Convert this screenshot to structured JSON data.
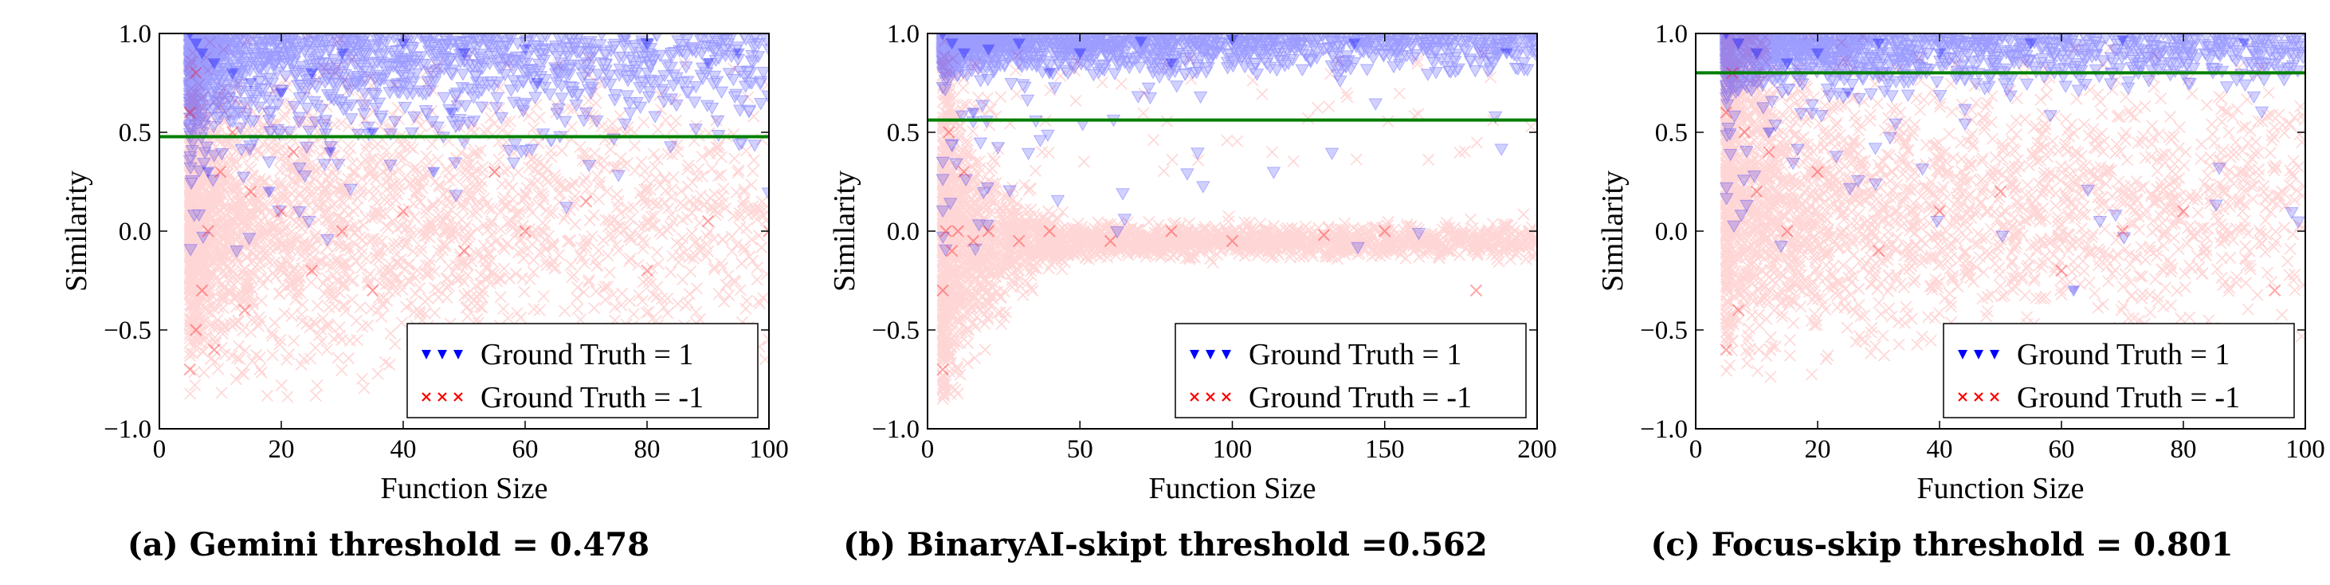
{
  "chart_data": [
    {
      "type": "scatter",
      "caption": "(a) Gemini threshold = 0.478",
      "xlabel": "Function Size",
      "ylabel": "Similarity",
      "xlim": [
        0,
        100
      ],
      "ylim": [
        -1.0,
        1.0
      ],
      "xticks": [
        0,
        20,
        40,
        60,
        80,
        100
      ],
      "yticks": [
        -1.0,
        -0.5,
        0.0,
        0.5,
        1.0
      ],
      "ytick_labels": [
        "−1.0",
        "−0.5",
        "0.0",
        "0.5",
        "1.0"
      ],
      "grid": false,
      "legend_position": "bottom-right",
      "threshold": 0.478,
      "series": [
        {
          "name": "Ground Truth = 1",
          "marker": "triangle-down",
          "color": "#0000ff",
          "x": [
            5,
            6,
            7,
            9,
            12,
            15,
            20,
            25,
            30,
            40,
            50,
            60,
            80,
            95,
            8,
            18,
            35,
            48,
            28,
            45,
            62,
            90
          ],
          "y": [
            1.0,
            0.95,
            0.9,
            0.85,
            0.8,
            0.75,
            0.7,
            0.8,
            0.9,
            0.95,
            0.9,
            0.92,
            0.95,
            0.9,
            0.3,
            0.2,
            0.5,
            0.6,
            0.4,
            0.3,
            0.75,
            0.85
          ]
        },
        {
          "name": "Ground Truth = -1",
          "marker": "x",
          "color": "#ff0000",
          "x": [
            5,
            6,
            7,
            8,
            10,
            12,
            15,
            20,
            25,
            30,
            40,
            50,
            60,
            70,
            80,
            90,
            100,
            5,
            6,
            9,
            14,
            22,
            35,
            55
          ],
          "y": [
            -0.7,
            -0.5,
            -0.3,
            0.0,
            0.3,
            0.5,
            0.2,
            0.1,
            -0.2,
            0.0,
            0.1,
            -0.1,
            0.0,
            0.15,
            -0.2,
            0.05,
            0.0,
            0.6,
            0.8,
            -0.6,
            -0.4,
            0.4,
            -0.3,
            0.3
          ]
        }
      ]
    },
    {
      "type": "scatter",
      "caption": "(b) BinaryAI-skipt threshold =0.562",
      "xlabel": "Function Size",
      "ylabel": "Similarity",
      "xlim": [
        0,
        200
      ],
      "ylim": [
        -1.0,
        1.0
      ],
      "xticks": [
        0,
        50,
        100,
        150,
        200
      ],
      "yticks": [
        -1.0,
        -0.5,
        0.0,
        0.5,
        1.0
      ],
      "ytick_labels": [
        "−1.0",
        "−0.5",
        "0.0",
        "0.5",
        "1.0"
      ],
      "grid": false,
      "legend_position": "bottom-right",
      "threshold": 0.562,
      "series": [
        {
          "name": "Ground Truth = 1",
          "marker": "triangle-down",
          "color": "#0000ff",
          "x": [
            5,
            8,
            12,
            20,
            30,
            50,
            70,
            100,
            140,
            190,
            15,
            40,
            80
          ],
          "y": [
            1.0,
            0.95,
            0.9,
            0.92,
            0.95,
            0.9,
            0.96,
            0.97,
            0.95,
            0.9,
            0.6,
            0.8,
            0.85
          ]
        },
        {
          "name": "Ground Truth = -1",
          "marker": "x",
          "color": "#ff0000",
          "x": [
            5,
            6,
            8,
            10,
            15,
            20,
            30,
            40,
            60,
            80,
            100,
            130,
            150,
            180,
            5,
            7,
            12
          ],
          "y": [
            -0.3,
            0.0,
            -0.1,
            0.0,
            -0.05,
            0.0,
            -0.05,
            0.0,
            -0.05,
            0.0,
            -0.05,
            -0.02,
            0.0,
            -0.3,
            -0.7,
            0.5,
            0.3
          ]
        }
      ]
    },
    {
      "type": "scatter",
      "caption": "(c) Focus-skip threshold = 0.801",
      "xlabel": "Function Size",
      "ylabel": "Similarity",
      "xlim": [
        0,
        100
      ],
      "ylim": [
        -1.0,
        1.0
      ],
      "xticks": [
        0,
        20,
        40,
        60,
        80,
        100
      ],
      "yticks": [
        -1.0,
        -0.5,
        0.0,
        0.5,
        1.0
      ],
      "ytick_labels": [
        "−1.0",
        "−0.5",
        "0.0",
        "0.5",
        "1.0"
      ],
      "grid": false,
      "legend_position": "bottom-right",
      "threshold": 0.801,
      "series": [
        {
          "name": "Ground Truth = 1",
          "marker": "triangle-down",
          "color": "#0000ff",
          "x": [
            5,
            7,
            10,
            15,
            20,
            30,
            40,
            55,
            70,
            90,
            100,
            12,
            25,
            62
          ],
          "y": [
            1.0,
            0.95,
            0.9,
            0.85,
            0.9,
            0.95,
            0.9,
            0.95,
            0.97,
            0.95,
            1.0,
            0.5,
            0.7,
            -0.3
          ]
        },
        {
          "name": "Ground Truth = -1",
          "marker": "x",
          "color": "#ff0000",
          "x": [
            5,
            6,
            8,
            10,
            15,
            20,
            30,
            40,
            50,
            60,
            70,
            80,
            95,
            5,
            7,
            12
          ],
          "y": [
            -0.6,
            0.8,
            0.5,
            0.2,
            0.0,
            0.3,
            -0.1,
            0.1,
            0.2,
            -0.2,
            0.0,
            0.1,
            -0.3,
            0.6,
            -0.4,
            0.4
          ]
        }
      ]
    }
  ],
  "colors": {
    "positive": "#0000ff",
    "negative": "#ff0000",
    "threshold_line": "#007f00"
  }
}
